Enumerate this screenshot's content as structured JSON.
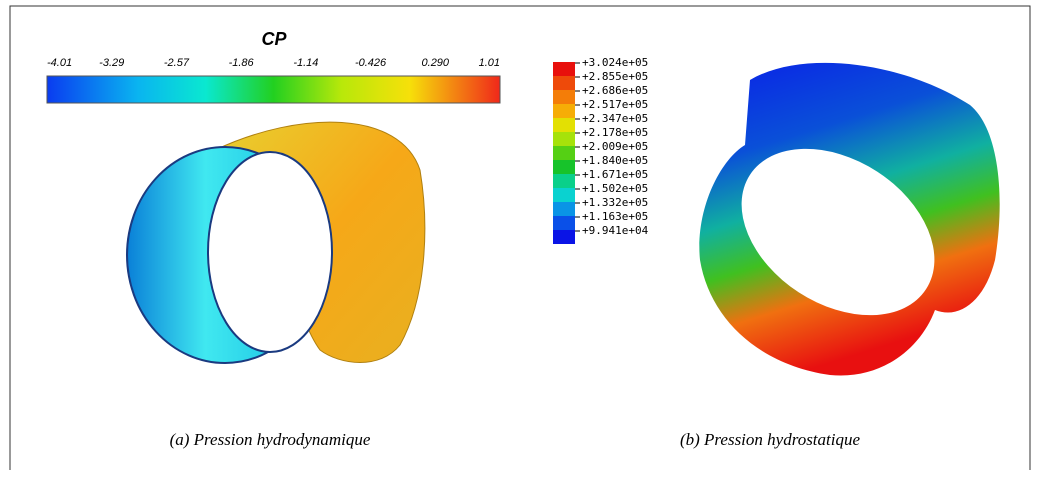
{
  "left_panel": {
    "colorbar_title": "CP",
    "colorbar_ticks": [
      "-4.01",
      "-3.29",
      "-2.57",
      "-1.86",
      "-1.14",
      "-0.426",
      "0.290",
      "1.01"
    ],
    "caption": "(a) Pression hydrodynamique"
  },
  "right_panel": {
    "legend": [
      {
        "label": "+3.024e+05",
        "color": "#e8100c"
      },
      {
        "label": "+2.855e+05",
        "color": "#ee4a0a"
      },
      {
        "label": "+2.686e+05",
        "color": "#f47d08"
      },
      {
        "label": "+2.517e+05",
        "color": "#f6ad06"
      },
      {
        "label": "+2.347e+05",
        "color": "#e3e003"
      },
      {
        "label": "+2.178e+05",
        "color": "#a6e20a"
      },
      {
        "label": "+2.009e+05",
        "color": "#55d014"
      },
      {
        "label": "+1.840e+05",
        "color": "#17c32a"
      },
      {
        "label": "+1.671e+05",
        "color": "#0ad08a"
      },
      {
        "label": "+1.502e+05",
        "color": "#0ad2d0"
      },
      {
        "label": "+1.332e+05",
        "color": "#0a94e6"
      },
      {
        "label": "+1.163e+05",
        "color": "#0a50e8"
      },
      {
        "label": "+9.941e+04",
        "color": "#0a14e6"
      }
    ],
    "caption": "(b) Pression hydrostatique"
  }
}
